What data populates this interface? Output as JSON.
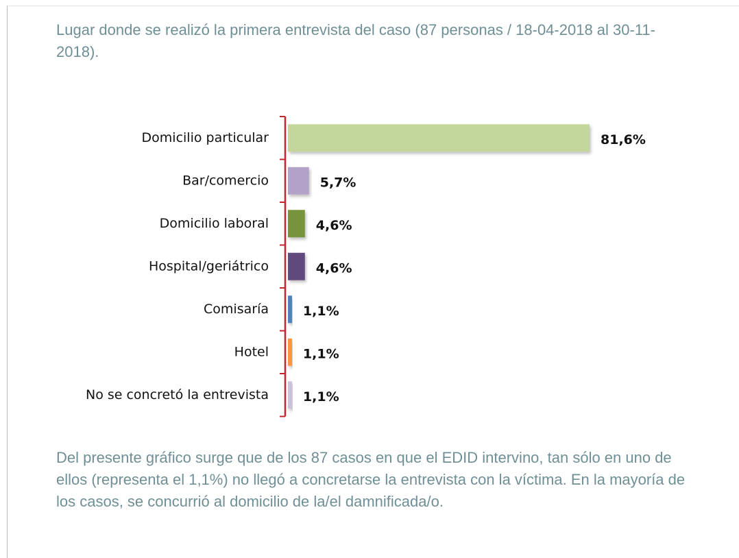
{
  "chart_data": {
    "type": "bar",
    "title": "Lugar donde se realizó la primera entrevista del caso (87 personas / 18-04-2018 al 30-11-2018).",
    "categories": [
      "Domicilio particular",
      "Bar/comercio",
      "Domicilio laboral",
      "Hospital/geriátrico",
      "Comisaría",
      "Hotel",
      "No se concretó la entrevista"
    ],
    "values": [
      81.6,
      5.7,
      4.6,
      4.6,
      1.1,
      1.1,
      1.1
    ],
    "value_labels": [
      "81,6%",
      "5,7%",
      "4,6%",
      "4,6%",
      "1,1%",
      "1,1%",
      "1,1%"
    ],
    "colors": [
      "#c3d69b",
      "#b3a2c7",
      "#77933c",
      "#604a7b",
      "#4f81bd",
      "#f79646",
      "#ccc1da"
    ],
    "note": "Del presente gráfico surge que de los 87 casos en que el EDID intervino, tan sólo en uno de ellos (representa el 1,1%) no llegó a concretarse la entrevista con la víctima. En la mayoría de los casos, se concurrió al domicilio de la/el damnificada/o."
  }
}
